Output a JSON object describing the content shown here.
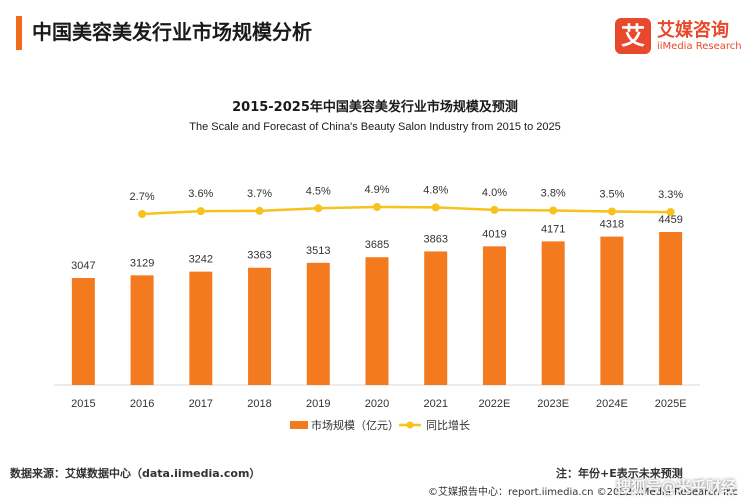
{
  "header": {
    "title": "中国美容美发行业市场规模分析"
  },
  "logo": {
    "mark": "艾",
    "name_cn": "艾媒咨询",
    "name_en": "iiMedia Research"
  },
  "chart_data": {
    "type": "bar",
    "title": "2015-2025年中国美容美发行业市场规模及预测",
    "subtitle": "The Scale and Forecast of China's Beauty Salon Industry from 2015 to 2025",
    "categories": [
      "2015",
      "2016",
      "2017",
      "2018",
      "2019",
      "2020",
      "2021",
      "2022E",
      "2023E",
      "2024E",
      "2025E"
    ],
    "series": [
      {
        "name": "市场规模（亿元）",
        "type": "bar",
        "values": [
          3047,
          3129,
          3242,
          3363,
          3513,
          3685,
          3863,
          4019,
          4171,
          4318,
          4459
        ],
        "labels": [
          "3047",
          "3129",
          "3242",
          "3363",
          "3513",
          "3685",
          "3863",
          "4019",
          "4171",
          "4318",
          "4459"
        ],
        "color": "#f47a20"
      },
      {
        "name": "同比增长",
        "type": "line",
        "values": [
          null,
          2.7,
          3.6,
          3.7,
          4.5,
          4.9,
          4.8,
          4.0,
          3.8,
          3.5,
          3.3
        ],
        "labels": [
          "",
          "2.7%",
          "3.6%",
          "3.7%",
          "4.5%",
          "4.9%",
          "4.8%",
          "4.0%",
          "3.8%",
          "3.5%",
          "3.3%"
        ],
        "color": "#f7c21c"
      }
    ],
    "ylim": [
      0,
      4500
    ],
    "legend_position": "bottom-center",
    "grid": false
  },
  "footer": {
    "source": "数据来源：艾媒数据中心（data.iimedia.com）",
    "note": "注：年份+E表示未来预测",
    "report": "©艾媒报告中心：report.iimedia.cn ©2022  iiMedia Research  Inc",
    "watermark": "搜狐号@米乎财经"
  }
}
